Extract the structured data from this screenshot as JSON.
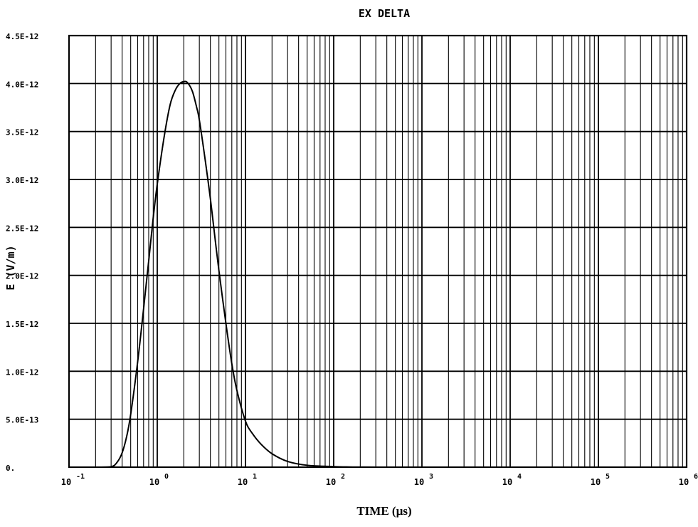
{
  "chart_data": {
    "type": "line",
    "title": "EX DELTA",
    "xlabel": "TIME (µs)",
    "ylabel": "E (V/m)",
    "x_scale": "log",
    "xlim": [
      0.1,
      1000000
    ],
    "ylim": [
      0,
      4.5e-12
    ],
    "grid": true,
    "x_ticks": [
      {
        "value": 0.1,
        "base": "10",
        "exp": "-1"
      },
      {
        "value": 1,
        "base": "10",
        "exp": "0"
      },
      {
        "value": 10,
        "base": "10",
        "exp": "1"
      },
      {
        "value": 100,
        "base": "10",
        "exp": "2"
      },
      {
        "value": 1000,
        "base": "10",
        "exp": "3"
      },
      {
        "value": 10000,
        "base": "10",
        "exp": "4"
      },
      {
        "value": 100000,
        "base": "10",
        "exp": "5"
      },
      {
        "value": 1000000,
        "base": "10",
        "exp": "6"
      }
    ],
    "y_ticks": [
      {
        "value": 0,
        "label": "0."
      },
      {
        "value": 5e-13,
        "label": "5.0E-13"
      },
      {
        "value": 1e-12,
        "label": "1.0E-12"
      },
      {
        "value": 1.5e-12,
        "label": "1.5E-12"
      },
      {
        "value": 2e-12,
        "label": "2.0E-12"
      },
      {
        "value": 2.5e-12,
        "label": "2.5E-12"
      },
      {
        "value": 3e-12,
        "label": "3.0E-12"
      },
      {
        "value": 3.5e-12,
        "label": "3.5E-12"
      },
      {
        "value": 4e-12,
        "label": "4.0E-12"
      },
      {
        "value": 4.5e-12,
        "label": "4.5E-12"
      }
    ],
    "series": [
      {
        "color": "#000000",
        "x": [
          0.1,
          0.2,
          0.3,
          0.35,
          0.4,
          0.45,
          0.5,
          0.6,
          0.7,
          0.8,
          0.9,
          1.0,
          1.2,
          1.4,
          1.6,
          1.8,
          2.0,
          2.2,
          2.5,
          2.8,
          3.0,
          3.5,
          4.0,
          4.5,
          5.0,
          6.0,
          7.0,
          8.0,
          10,
          12,
          15,
          20,
          30,
          50,
          100,
          150,
          200,
          300,
          1000,
          1000000
        ],
        "y": [
          0,
          0,
          5e-15,
          5e-14,
          1.5e-13,
          3.2e-13,
          5.5e-13,
          1.1e-12,
          1.65e-12,
          2.15e-12,
          2.6e-12,
          2.95e-12,
          3.45e-12,
          3.78e-12,
          3.93e-12,
          4e-12,
          4.02e-12,
          4.01e-12,
          3.92e-12,
          3.75e-12,
          3.62e-12,
          3.2e-12,
          2.8e-12,
          2.4e-12,
          2.05e-12,
          1.5e-12,
          1.08e-12,
          8e-13,
          4.8e-13,
          3.5e-13,
          2.4e-13,
          1.4e-13,
          6e-14,
          2e-14,
          6e-15,
          2e-15,
          1e-15,
          0,
          0,
          0
        ]
      }
    ]
  }
}
